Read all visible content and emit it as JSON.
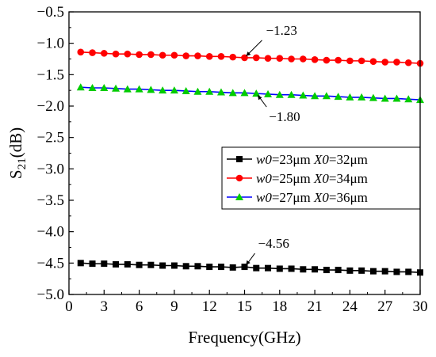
{
  "chart_data": {
    "type": "line",
    "xlabel": "Frequency(GHz)",
    "ylabel": {
      "main": "S",
      "sub": "21",
      "suffix": "(dB)"
    },
    "xlim": [
      0,
      30
    ],
    "ylim": [
      -5.0,
      -0.5
    ],
    "xticks": [
      "0",
      "3",
      "6",
      "9",
      "12",
      "15",
      "18",
      "21",
      "24",
      "27",
      "30"
    ],
    "yticks": [
      "-0.5",
      "-1.0",
      "-1.5",
      "-2.0",
      "-2.5",
      "-3.0",
      "-3.5",
      "-4.0",
      "-4.5",
      "-5.0"
    ],
    "x": [
      1,
      2,
      3,
      4,
      5,
      6,
      7,
      8,
      9,
      10,
      11,
      12,
      13,
      14,
      15,
      16,
      17,
      18,
      19,
      20,
      21,
      22,
      23,
      24,
      25,
      26,
      27,
      28,
      29,
      30
    ],
    "series": [
      {
        "name": "w0=23μm X0=32μm",
        "name_parts": {
          "w": "w0",
          "w_val": "=23μm ",
          "x": "X0",
          "x_val": "=32μm"
        },
        "color": "#000000",
        "marker": "square",
        "values": [
          -4.5,
          -4.51,
          -4.51,
          -4.52,
          -4.52,
          -4.53,
          -4.53,
          -4.54,
          -4.54,
          -4.55,
          -4.55,
          -4.56,
          -4.56,
          -4.57,
          -4.56,
          -4.58,
          -4.58,
          -4.59,
          -4.59,
          -4.6,
          -4.6,
          -4.61,
          -4.61,
          -4.62,
          -4.62,
          -4.63,
          -4.63,
          -4.64,
          -4.64,
          -4.65
        ]
      },
      {
        "name": "w0=25μm X0=34μm",
        "name_parts": {
          "w": "w0",
          "w_val": "=25μm ",
          "x": "X0",
          "x_val": "=34μm"
        },
        "color": "#ff0000",
        "marker": "circle",
        "values": [
          -1.14,
          -1.15,
          -1.16,
          -1.17,
          -1.17,
          -1.18,
          -1.18,
          -1.19,
          -1.19,
          -1.2,
          -1.2,
          -1.21,
          -1.21,
          -1.22,
          -1.23,
          -1.23,
          -1.24,
          -1.24,
          -1.25,
          -1.25,
          -1.26,
          -1.27,
          -1.27,
          -1.28,
          -1.28,
          -1.29,
          -1.3,
          -1.3,
          -1.31,
          -1.32
        ]
      },
      {
        "name": "w0=27μm X0=36μm",
        "name_parts": {
          "w": "w0",
          "w_val": "=27μm ",
          "x": "X0",
          "x_val": "=36μm"
        },
        "color": "#00cc00",
        "line_color": "#0000ff",
        "marker": "triangle",
        "values": [
          -1.7,
          -1.71,
          -1.71,
          -1.72,
          -1.73,
          -1.73,
          -1.74,
          -1.75,
          -1.75,
          -1.76,
          -1.77,
          -1.77,
          -1.78,
          -1.79,
          -1.79,
          -1.8,
          -1.81,
          -1.82,
          -1.82,
          -1.83,
          -1.84,
          -1.84,
          -1.85,
          -1.86,
          -1.86,
          -1.87,
          -1.88,
          -1.88,
          -1.89,
          -1.9
        ]
      }
    ],
    "annotations": [
      {
        "text": "-1.23",
        "x": 15,
        "y": -1.23,
        "series": 1
      },
      {
        "text": "-1.80",
        "x": 16,
        "y": -1.8,
        "series": 2
      },
      {
        "text": "-4.56",
        "x": 15,
        "y": -4.56,
        "series": 0
      }
    ],
    "legend_position": "center-right",
    "grid": false
  }
}
